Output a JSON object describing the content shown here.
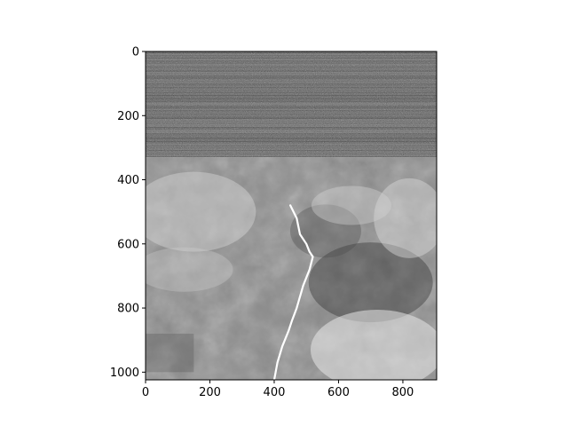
{
  "chart_data": {
    "type": "heatmap",
    "title": "",
    "xlabel": "",
    "ylabel": "",
    "colormap": "grayscale",
    "image_width": 905,
    "image_height": 1024,
    "xlim": [
      0,
      905
    ],
    "ylim": [
      1024,
      0
    ],
    "y_axis_inverted": true,
    "x_ticks": [
      0,
      200,
      400,
      600,
      800
    ],
    "y_ticks": [
      0,
      200,
      400,
      600,
      800,
      1000
    ],
    "x_tick_labels": [
      "0",
      "200",
      "400",
      "600",
      "800"
    ],
    "y_tick_labels": [
      "0",
      "200",
      "400",
      "600",
      "800",
      "1000"
    ],
    "content": "grayscale satellite image: noisy striped band in rows 0-330, then cloud fields with a bright coastline running from about (440,480) down to (400,1024)",
    "bands": [
      {
        "y0": 0,
        "y1": 330,
        "kind": "noise",
        "mean_gray": 85
      },
      {
        "y0": 330,
        "y1": 1024,
        "kind": "imagery",
        "mean_gray": 140
      }
    ],
    "coastline": [
      [
        450,
        480
      ],
      [
        470,
        520
      ],
      [
        480,
        570
      ],
      [
        500,
        600
      ],
      [
        510,
        625
      ],
      [
        520,
        640
      ],
      [
        510,
        680
      ],
      [
        490,
        730
      ],
      [
        470,
        800
      ],
      [
        455,
        840
      ],
      [
        445,
        870
      ],
      [
        425,
        920
      ],
      [
        410,
        970
      ],
      [
        400,
        1024
      ]
    ]
  },
  "colors": {
    "axes_edge": "#000000",
    "tick_text": "#000000",
    "background": "#ffffff",
    "coastline": "#ffffff"
  }
}
